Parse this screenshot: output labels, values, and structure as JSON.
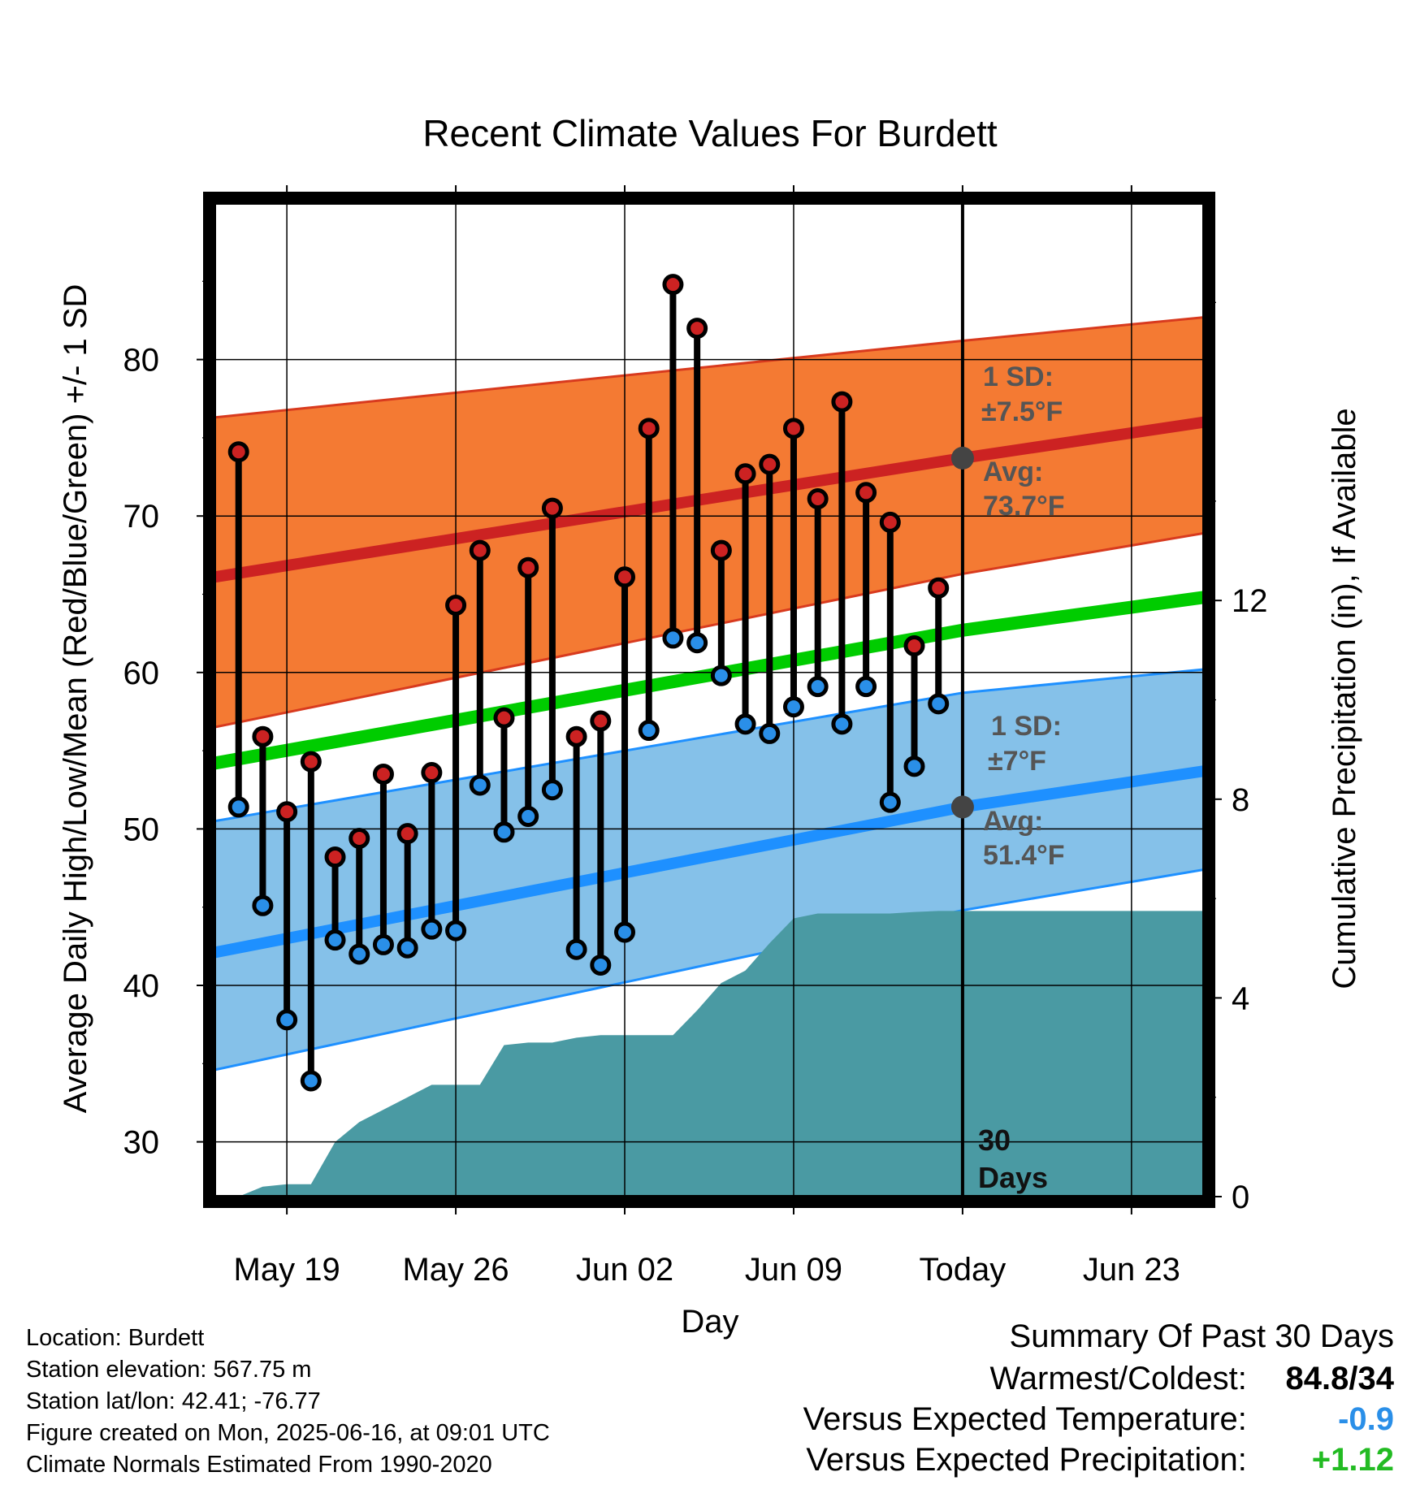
{
  "chart_data": {
    "type": "line",
    "title": "Recent Climate Values For Burdett",
    "xlabel": "Day",
    "ylabel_left": "Average Daily High/Low/Mean (Red/Blue/Green) +/- 1 SD",
    "ylabel_right": "Cumulative Precipitation (in), If Available",
    "x_range": [
      "2025-05-16",
      "2025-06-26"
    ],
    "y_left_range": [
      26.5,
      90
    ],
    "y_right_range": [
      0,
      20
    ],
    "x_ticks": [
      {
        "date": "2025-05-19",
        "label": "May 19"
      },
      {
        "date": "2025-05-26",
        "label": "May 26"
      },
      {
        "date": "2025-06-02",
        "label": "Jun 02"
      },
      {
        "date": "2025-06-09",
        "label": "Jun 09"
      },
      {
        "date": "2025-06-16",
        "label": "Today"
      },
      {
        "date": "2025-06-23",
        "label": "Jun 23"
      }
    ],
    "y_left_ticks": [
      30,
      40,
      50,
      60,
      70,
      80
    ],
    "y_right_ticks": [
      0,
      4,
      8,
      12
    ],
    "grid": true,
    "today": "2025-06-16",
    "dates": [
      "2025-05-17",
      "2025-05-18",
      "2025-05-19",
      "2025-05-20",
      "2025-05-21",
      "2025-05-22",
      "2025-05-23",
      "2025-05-24",
      "2025-05-25",
      "2025-05-26",
      "2025-05-27",
      "2025-05-28",
      "2025-05-29",
      "2025-05-30",
      "2025-05-31",
      "2025-06-01",
      "2025-06-02",
      "2025-06-03",
      "2025-06-04",
      "2025-06-05",
      "2025-06-06",
      "2025-06-07",
      "2025-06-08",
      "2025-06-09",
      "2025-06-10",
      "2025-06-11",
      "2025-06-12",
      "2025-06-13",
      "2025-06-14",
      "2025-06-15"
    ],
    "series": [
      {
        "name": "High",
        "color": "#cc2222",
        "values": [
          74.1,
          55.9,
          51.1,
          54.3,
          48.2,
          49.4,
          53.5,
          49.7,
          53.6,
          64.3,
          67.8,
          57.1,
          66.7,
          70.5,
          55.9,
          56.9,
          66.1,
          75.6,
          84.8,
          82.0,
          67.8,
          72.7,
          73.3,
          75.6,
          71.1,
          77.3,
          71.5,
          69.6,
          61.7,
          65.4
        ]
      },
      {
        "name": "Low",
        "color": "#2a8fe8",
        "values": [
          51.4,
          45.1,
          37.8,
          33.9,
          42.9,
          42.0,
          42.6,
          42.4,
          43.6,
          43.5,
          52.8,
          49.8,
          50.8,
          52.5,
          42.3,
          41.3,
          43.4,
          56.3,
          62.2,
          61.9,
          59.8,
          56.7,
          56.1,
          57.8,
          59.1,
          56.7,
          59.1,
          51.7,
          54.0,
          58.0
        ]
      }
    ],
    "normals": {
      "dates": [
        "2025-05-16",
        "2025-06-16",
        "2025-06-26"
      ],
      "high_avg": [
        66.1,
        73.7,
        76.0
      ],
      "high_sd_upper": [
        76.3,
        81.2,
        82.7
      ],
      "high_sd_lower": [
        56.5,
        66.3,
        68.9
      ],
      "mean_avg": [
        54.2,
        62.7,
        64.8
      ],
      "low_avg": [
        42.1,
        51.4,
        53.7
      ],
      "low_sd_upper": [
        50.5,
        58.7,
        60.2
      ],
      "low_sd_lower": [
        34.6,
        44.8,
        47.4
      ]
    },
    "precipitation": {
      "dates": [
        "2025-05-16",
        "2025-05-17",
        "2025-05-18",
        "2025-05-19",
        "2025-05-20",
        "2025-05-21",
        "2025-05-22",
        "2025-05-23",
        "2025-05-24",
        "2025-05-25",
        "2025-05-26",
        "2025-05-27",
        "2025-05-28",
        "2025-05-29",
        "2025-05-30",
        "2025-05-31",
        "2025-06-01",
        "2025-06-02",
        "2025-06-03",
        "2025-06-04",
        "2025-06-05",
        "2025-06-06",
        "2025-06-07",
        "2025-06-08",
        "2025-06-09",
        "2025-06-10",
        "2025-06-11",
        "2025-06-12",
        "2025-06-13",
        "2025-06-14",
        "2025-06-15",
        "2025-06-26"
      ],
      "values": [
        0,
        0,
        0.2,
        0.25,
        0.25,
        1.1,
        1.5,
        1.75,
        2.0,
        2.25,
        2.25,
        2.25,
        3.05,
        3.1,
        3.1,
        3.2,
        3.25,
        3.25,
        3.25,
        3.25,
        3.75,
        4.3,
        4.55,
        5.1,
        5.6,
        5.7,
        5.7,
        5.7,
        5.7,
        5.73,
        5.75,
        5.75
      ]
    },
    "annotations": {
      "high_sd_label": "1 SD:",
      "high_sd_value": "±7.5°F",
      "high_avg_label": "Avg:",
      "high_avg_value": "73.7°F",
      "low_sd_label": "1 SD:",
      "low_sd_value": "±7°F",
      "low_avg_label": "Avg:",
      "low_avg_value": "51.4°F",
      "period_number": "30",
      "period_unit": "Days"
    },
    "colors": {
      "high_band": "#f47a33",
      "high_line": "#cc2222",
      "mean_line": "#00cc00",
      "low_band": "#85c1e9",
      "low_line": "#1e90ff",
      "precip": "#4a9aa3",
      "avg_marker": "#444444"
    }
  },
  "footer": {
    "location": "Location: Burdett",
    "elevation": "Station elevation: 567.75 m",
    "latlon": "Station lat/lon: 42.41; -76.77",
    "created": "Figure created on Mon, 2025-06-16, at 09:01 UTC",
    "normals": "Climate Normals Estimated From 1990-2020"
  },
  "summary": {
    "title": "Summary Of Past 30 Days",
    "warmest_coldest_label": "Warmest/Coldest:",
    "warmest_coldest_value": "84.8/34",
    "temp_label": "Versus Expected Temperature:",
    "temp_value": "-0.9",
    "temp_color": "#2a8fe8",
    "precip_label": "Versus Expected Precipitation:",
    "precip_value": "+1.12",
    "precip_color": "#22bb22"
  }
}
